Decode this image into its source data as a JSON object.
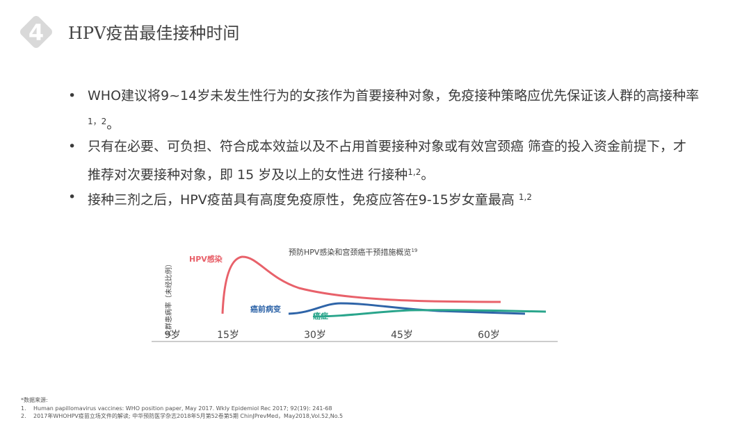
{
  "header": {
    "number": "4",
    "title": "HPV疫苗最佳接种时间"
  },
  "bullets": [
    {
      "text": "WHO建议将9~14岁未发生性行为的女孩作为首要接种对象，免疫接种策略应优先保证该人群的高接种率",
      "sup": "1，2",
      "tail": "。"
    },
    {
      "text": "只有在必要、可负担、符合成本效益以及不占用首要接种对象或有效宫颈癌 筛查的投入资金前提下，才推荐对次要接种对象，即 15 岁及以上的女性进 行接种",
      "sup": "1,2",
      "tail": "。"
    },
    {
      "text": "接种三剂之后，HPV疫苗具有高度免疫原性，免疫应答在9-15岁女童最高",
      "sup": "1,2"
    }
  ],
  "figure": {
    "title": "预防HPV感染和宫颈癌干预措施概览",
    "title_sup": "19",
    "y_label": "人群患病率（未经比例）",
    "curve_labels": [
      "HPV感染",
      "癌前病变",
      "癌症"
    ],
    "x_labels": [
      "9岁",
      "15岁",
      "30岁",
      "45岁",
      "60岁"
    ]
  },
  "footnotes": {
    "heading": "*数据来源:",
    "items": [
      {
        "num": "1.",
        "text": "Human papillomavirus vaccines: WHO position paper, May 2017. Wkly Epidemiol Rec 2017; 92(19): 241-68"
      },
      {
        "num": "2.",
        "text": "2017年WHOHPV疫苗立场文件的解读; 中华预防医学杂志2018年5月第52卷第5期 ChinJPrevMed，May2018,Vol.52,No.5"
      }
    ]
  }
}
